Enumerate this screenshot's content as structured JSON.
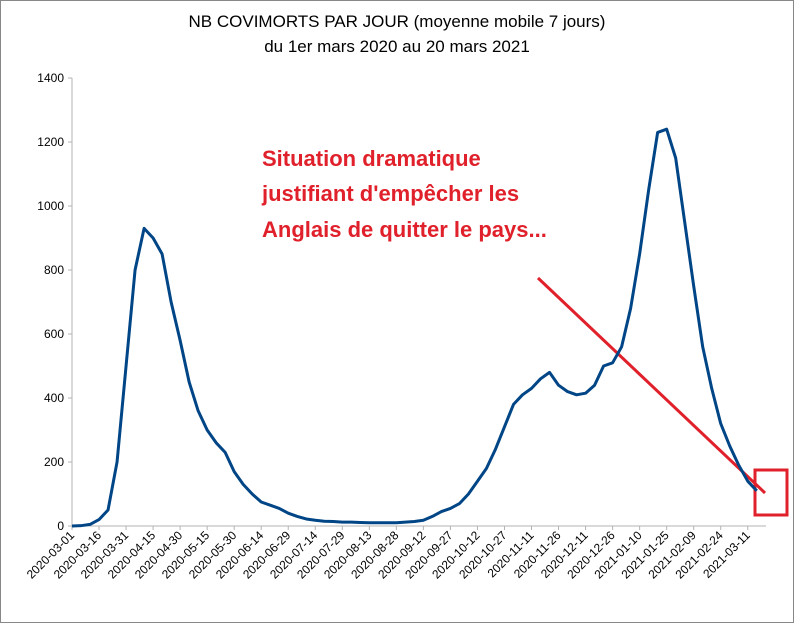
{
  "chart_data": {
    "type": "line",
    "title": "NB COVIMORTS PAR JOUR (moyenne mobile 7 jours)",
    "subtitle": "du 1er mars 2020 au 20 mars 2021",
    "annotation": [
      "Situation dramatique",
      "justifiant d'empêcher les",
      "Anglais de quitter le pays..."
    ],
    "categories": [
      "2020-03-01",
      null,
      null,
      "2020-03-16",
      null,
      null,
      "2020-03-31",
      null,
      null,
      "2020-04-15",
      null,
      null,
      "2020-04-30",
      null,
      null,
      "2020-05-15",
      null,
      null,
      "2020-05-30",
      null,
      null,
      "2020-06-14",
      null,
      null,
      "2020-06-29",
      null,
      null,
      "2020-07-14",
      null,
      null,
      "2020-07-29",
      null,
      null,
      "2020-08-13",
      null,
      null,
      "2020-08-28",
      null,
      null,
      "2020-09-12",
      null,
      null,
      "2020-09-27",
      null,
      null,
      "2020-10-12",
      null,
      null,
      "2020-10-27",
      null,
      null,
      "2020-11-11",
      null,
      null,
      "2020-11-26",
      null,
      null,
      "2020-12-11",
      null,
      null,
      "2020-12-26",
      null,
      null,
      "2021-01-10",
      null,
      null,
      "2021-01-25",
      null,
      null,
      "2021-02-09",
      null,
      null,
      "2021-02-24",
      null,
      null,
      "2021-03-11",
      null
    ],
    "series": [
      {
        "name": "NB COVIMORTS",
        "color": "#004586",
        "values": [
          0,
          1,
          5,
          20,
          50,
          200,
          500,
          800,
          930,
          900,
          850,
          700,
          580,
          450,
          360,
          300,
          260,
          230,
          170,
          130,
          100,
          75,
          65,
          55,
          40,
          30,
          22,
          18,
          15,
          14,
          12,
          12,
          11,
          10,
          10,
          10,
          10,
          12,
          14,
          18,
          30,
          45,
          55,
          70,
          100,
          140,
          180,
          240,
          310,
          380,
          410,
          430,
          460,
          480,
          440,
          420,
          410,
          415,
          440,
          500,
          510,
          560,
          680,
          850,
          1050,
          1230,
          1240,
          1150,
          950,
          750,
          560,
          430,
          320,
          250,
          190,
          140,
          110
        ]
      }
    ],
    "ylim": [
      0,
      1400
    ],
    "yticks": [
      0,
      200,
      400,
      600,
      800,
      1000,
      1200,
      1400
    ],
    "grid": false
  }
}
